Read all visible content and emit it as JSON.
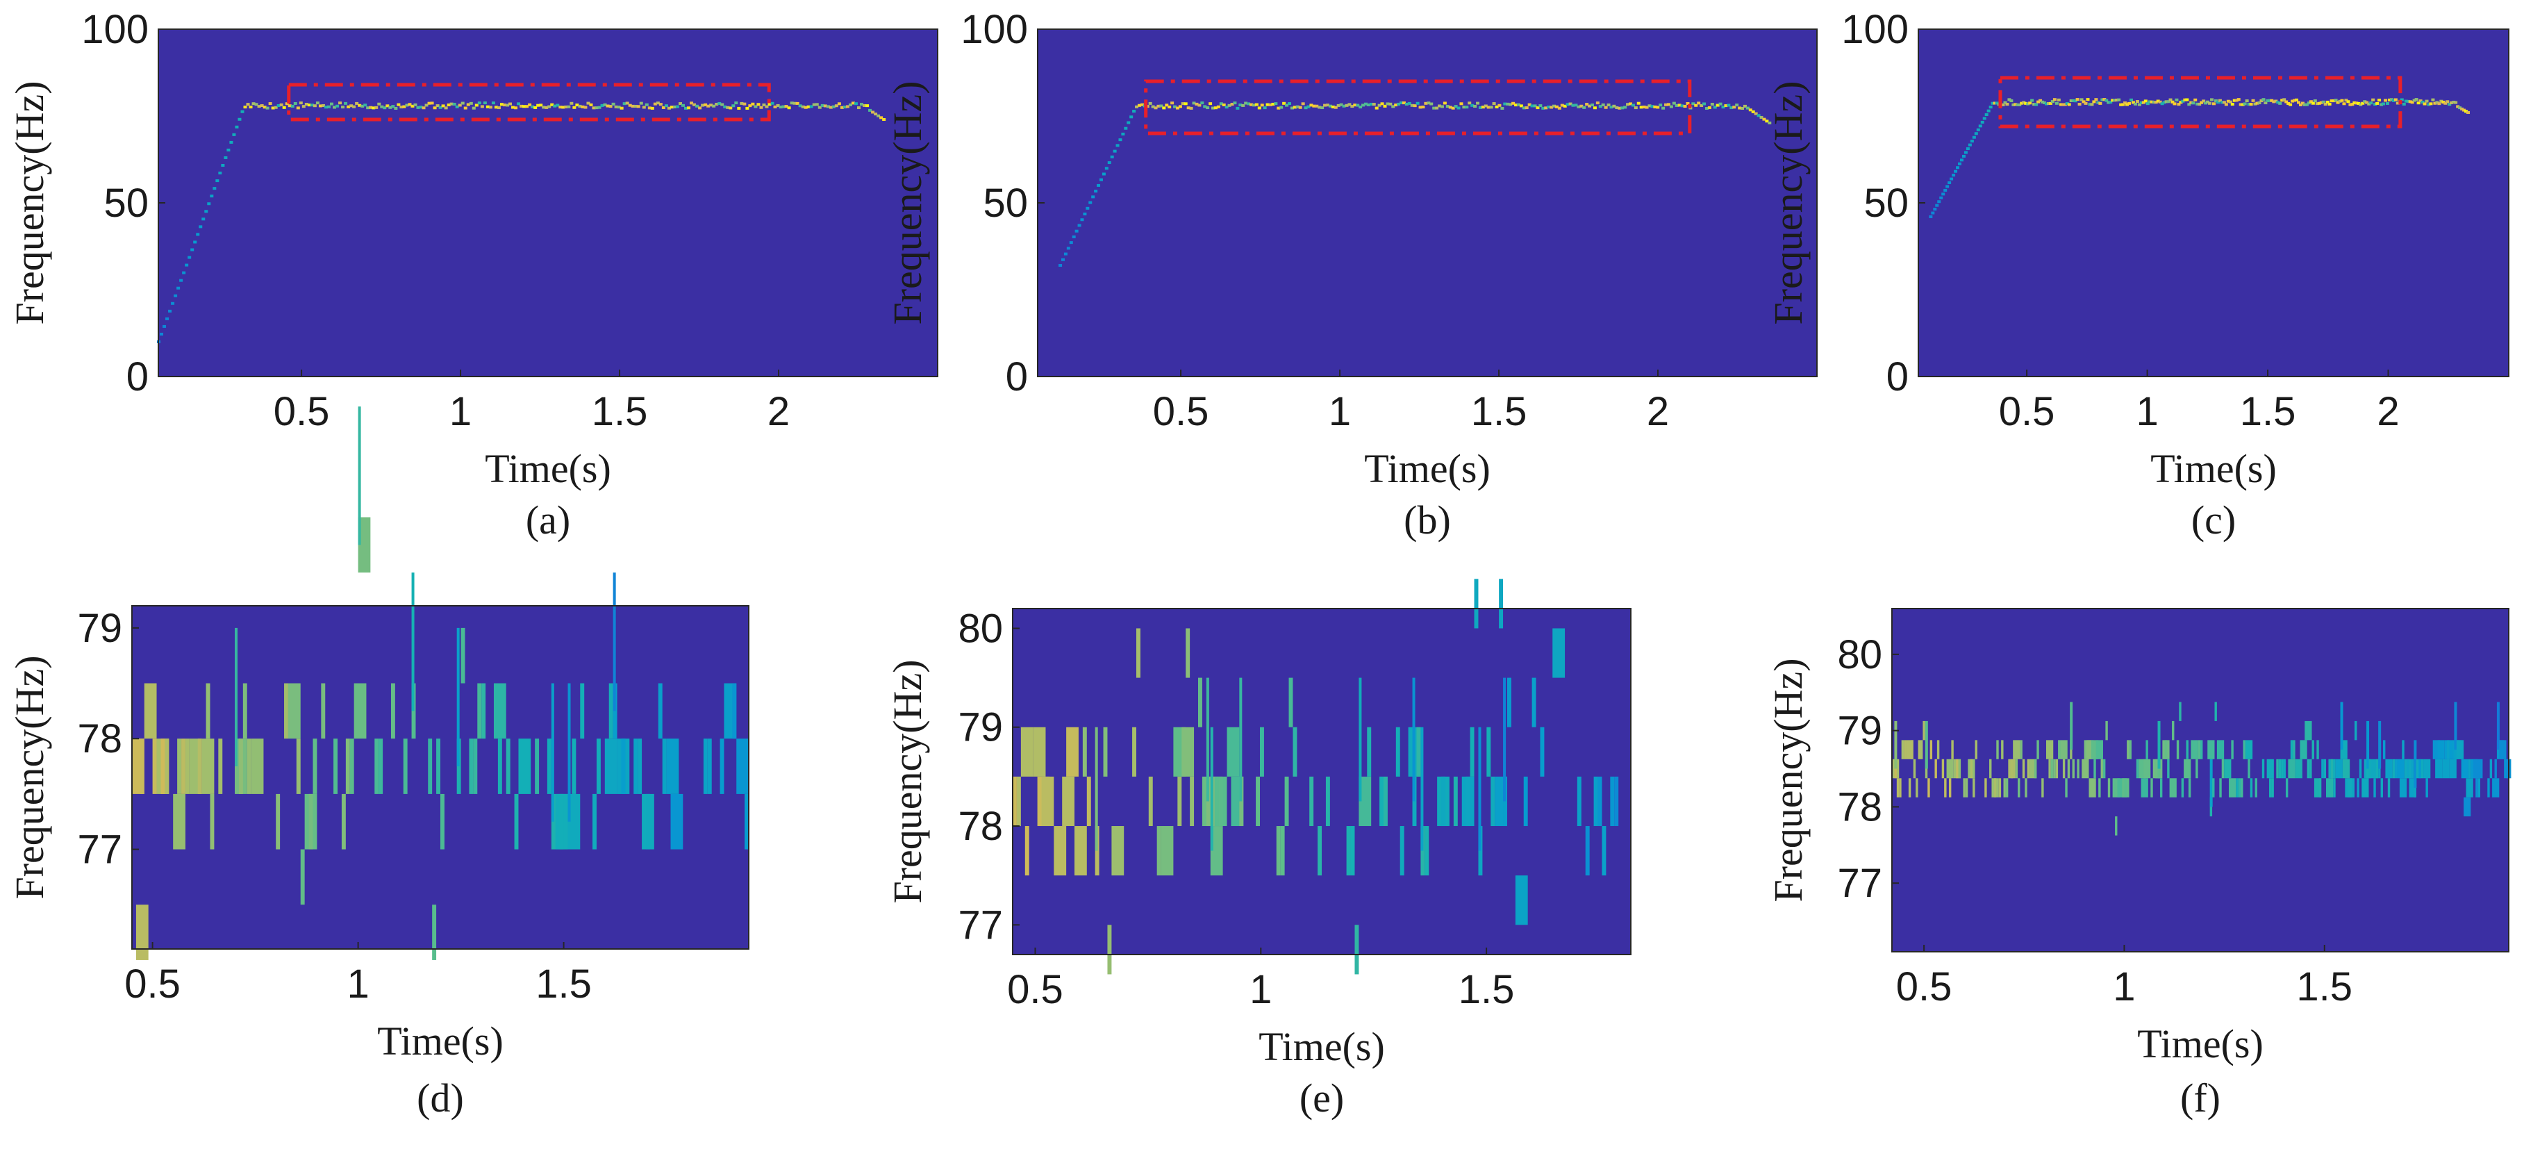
{
  "figure": {
    "background_color": "#3b2fa3"
  },
  "chart_data": [
    {
      "panel": "a",
      "type": "heatmap",
      "caption": "(a)",
      "xlabel": "Time(s)",
      "ylabel": "Frequency(Hz)",
      "xlim": [
        0.05,
        2.5
      ],
      "ylim": [
        0,
        100
      ],
      "xticks": [
        0.5,
        1,
        1.5,
        2
      ],
      "xtick_labels": [
        "0.5",
        "1",
        "1.5",
        "2"
      ],
      "yticks": [
        0,
        50,
        100
      ],
      "ytick_labels": [
        "0",
        "50",
        "100"
      ],
      "ridge": {
        "start": [
          0.05,
          10
        ],
        "knee": [
          0.32,
          78
        ],
        "plateau_end": [
          2.28,
          77
        ],
        "end_freq": 74,
        "end_time": 2.33
      },
      "highlight_box": {
        "x": [
          0.46,
          1.97
        ],
        "y": [
          74,
          84
        ],
        "color": "#e8202a",
        "style": "dash-dot"
      }
    },
    {
      "panel": "b",
      "type": "heatmap",
      "caption": "(b)",
      "xlabel": "Time(s)",
      "ylabel": "Frequency(Hz)",
      "xlim": [
        0.05,
        2.5
      ],
      "ylim": [
        0,
        100
      ],
      "xticks": [
        0.5,
        1,
        1.5,
        2
      ],
      "xtick_labels": [
        "0.5",
        "1",
        "1.5",
        "2"
      ],
      "yticks": [
        0,
        50,
        100
      ],
      "ytick_labels": [
        "0",
        "50",
        "100"
      ],
      "ridge": {
        "start": [
          0.12,
          32
        ],
        "knee": [
          0.36,
          78
        ],
        "plateau_end": [
          2.27,
          78
        ],
        "end_freq": 73,
        "end_time": 2.35
      },
      "highlight_box": {
        "x": [
          0.39,
          2.1
        ],
        "y": [
          70,
          85
        ],
        "color": "#e8202a",
        "style": "dash-dot"
      }
    },
    {
      "panel": "c",
      "type": "heatmap",
      "caption": "(c)",
      "xlabel": "Time(s)",
      "ylabel": "Frequency(Hz)",
      "xlim": [
        0.05,
        2.5
      ],
      "ylim": [
        0,
        100
      ],
      "xticks": [
        0.5,
        1,
        1.5,
        2
      ],
      "xtick_labels": [
        "0.5",
        "1",
        "1.5",
        "2"
      ],
      "yticks": [
        0,
        50,
        100
      ],
      "ytick_labels": [
        "0",
        "50",
        "100"
      ],
      "ridge": {
        "start": [
          0.1,
          46
        ],
        "knee": [
          0.36,
          79
        ],
        "plateau_end": [
          2.28,
          78
        ],
        "end_freq": 76,
        "end_time": 2.33
      },
      "highlight_box": {
        "x": [
          0.39,
          2.05
        ],
        "y": [
          72,
          86
        ],
        "color": "#e8202a",
        "style": "dash-dot"
      }
    },
    {
      "panel": "d",
      "type": "heatmap",
      "caption": "(d)",
      "xlabel": "Time(s)",
      "ylabel": "Frequency(Hz)",
      "xlim": [
        0.45,
        1.95
      ],
      "ylim": [
        76.1,
        79.2
      ],
      "xticks": [
        0.5,
        1,
        1.5
      ],
      "xtick_labels": [
        "0.5",
        "1",
        "1.5"
      ],
      "yticks": [
        77,
        78,
        79
      ],
      "ytick_labels": [
        "77",
        "78",
        "79"
      ],
      "bin_hz": 0.5,
      "dominant_freq": 77.75,
      "seed": 11,
      "density": 0.55
    },
    {
      "panel": "e",
      "type": "heatmap",
      "caption": "(e)",
      "xlabel": "Time(s)",
      "ylabel": "Frequency(Hz)",
      "xlim": [
        0.45,
        1.82
      ],
      "ylim": [
        76.7,
        80.2
      ],
      "xticks": [
        0.5,
        1,
        1.5
      ],
      "xtick_labels": [
        "0.5",
        "1",
        "1.5"
      ],
      "yticks": [
        77,
        78,
        79,
        80
      ],
      "ytick_labels": [
        "77",
        "78",
        "79",
        "80"
      ],
      "bin_hz": 0.5,
      "dominant_freq": 78.25,
      "seed": 23,
      "density": 0.6
    },
    {
      "panel": "f",
      "type": "heatmap",
      "caption": "(f)",
      "xlabel": "Time(s)",
      "ylabel": "Frequency(Hz)",
      "xlim": [
        0.42,
        1.96
      ],
      "ylim": [
        76.1,
        80.6
      ],
      "xticks": [
        0.5,
        1,
        1.5
      ],
      "xtick_labels": [
        "0.5",
        "1",
        "1.5"
      ],
      "yticks": [
        77,
        78,
        79,
        80
      ],
      "ytick_labels": [
        "77",
        "78",
        "79",
        "80"
      ],
      "bin_hz": 0.25,
      "dominant_freq": 78.5,
      "seed": 37,
      "density": 0.85
    }
  ]
}
